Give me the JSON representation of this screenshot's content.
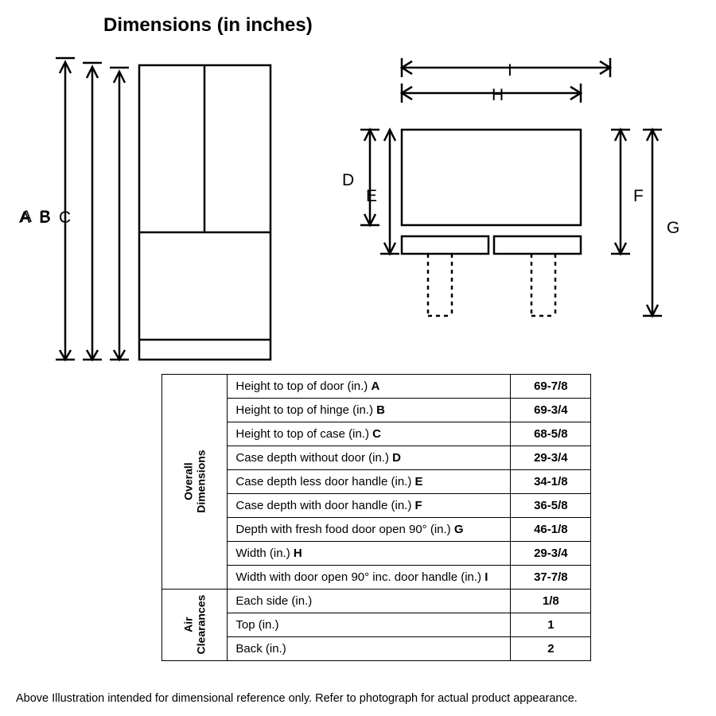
{
  "title": "Dimensions (in inches)",
  "colors": {
    "stroke": "#000000",
    "background": "#ffffff",
    "text": "#000000"
  },
  "stroke_width": 2.5,
  "diagram": {
    "type": "infographic",
    "labels": {
      "A": "A",
      "B": "B",
      "C": "C",
      "D": "D",
      "E": "E",
      "F": "F",
      "G": "G",
      "H": "H",
      "I": "I"
    },
    "label_fontsize": 21
  },
  "table": {
    "groups": [
      {
        "name": "Overall Dimensions",
        "rows": [
          {
            "label_pre": "Height to top of door (in.) ",
            "label_bold": "A",
            "value": "69-7/8"
          },
          {
            "label_pre": "Height to top of hinge (in.) ",
            "label_bold": "B",
            "value": "69-3/4"
          },
          {
            "label_pre": "Height to top of case (in.) ",
            "label_bold": "C",
            "value": "68-5/8"
          },
          {
            "label_pre": "Case depth without door (in.) ",
            "label_bold": "D",
            "value": "29-3/4"
          },
          {
            "label_pre": "Case depth less door handle (in.) ",
            "label_bold": "E",
            "value": "34-1/8"
          },
          {
            "label_pre": "Case depth with door handle (in.) ",
            "label_bold": "F",
            "value": "36-5/8"
          },
          {
            "label_pre": "Depth with fresh food door open 90° (in.) ",
            "label_bold": "G",
            "value": "46-1/8"
          },
          {
            "label_pre": "Width (in.) ",
            "label_bold": "H",
            "value": "29-3/4"
          },
          {
            "label_pre": "Width with door open 90° inc. door handle (in.) ",
            "label_bold": "I",
            "value": "37-7/8"
          }
        ]
      },
      {
        "name": "Air Clearances",
        "rows": [
          {
            "label_pre": "Each side (in.)",
            "label_bold": "",
            "value": "1/8"
          },
          {
            "label_pre": "Top (in.)",
            "label_bold": "",
            "value": "1"
          },
          {
            "label_pre": "Back (in.)",
            "label_bold": "",
            "value": "2"
          }
        ]
      }
    ]
  },
  "footnote": "Above Illustration intended for dimensional reference only. Refer to photograph for actual product appearance."
}
